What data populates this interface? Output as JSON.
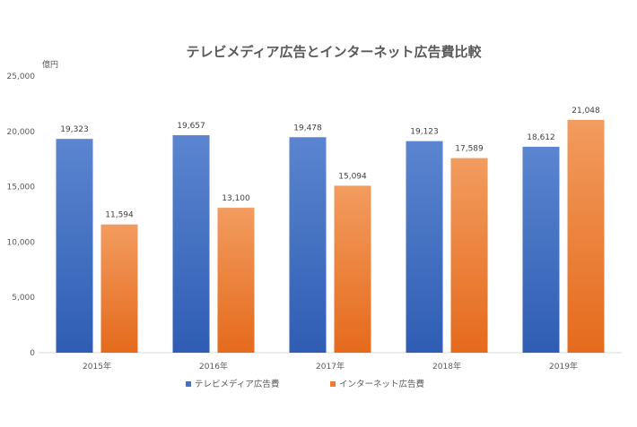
{
  "chart_data": {
    "type": "bar",
    "title": "テレビメディア広告とインターネット広告費比較",
    "ylabel": "億円",
    "xlabel": "",
    "categories": [
      "2015年",
      "2016年",
      "2017年",
      "2018年",
      "2019年"
    ],
    "ylim": [
      0,
      25000
    ],
    "yticks": [
      0,
      5000,
      10000,
      15000,
      20000,
      25000
    ],
    "ytick_labels": [
      "0",
      "5,000",
      "10,000",
      "15,000",
      "20,000",
      "25,000"
    ],
    "grid": false,
    "legend_position": "bottom",
    "series": [
      {
        "name": "テレビメディア広告費",
        "values": [
          19323,
          19657,
          19478,
          19123,
          18612
        ],
        "labels": [
          "19,323",
          "19,657",
          "19,478",
          "19,123",
          "18,612"
        ],
        "color": "#4472C4"
      },
      {
        "name": "インターネット広告費",
        "values": [
          11594,
          13100,
          15094,
          17589,
          21048
        ],
        "labels": [
          "11,594",
          "13,100",
          "15,094",
          "17,589",
          "21,048"
        ],
        "color": "#ED7D31"
      }
    ]
  }
}
